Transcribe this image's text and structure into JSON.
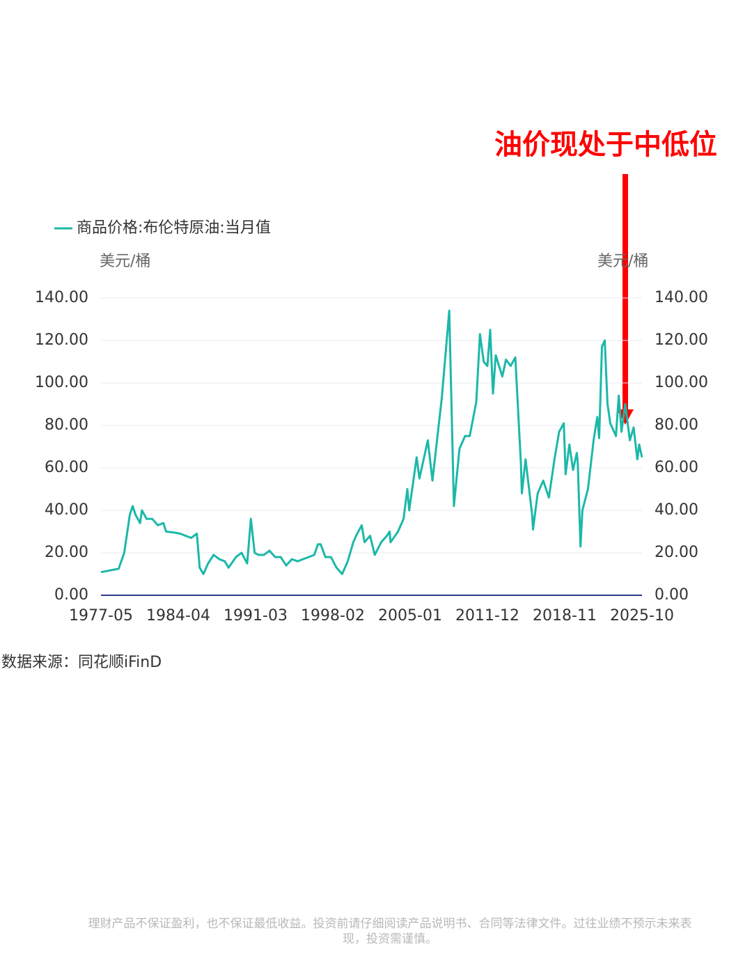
{
  "annotation": "油价现处于中低位",
  "source": "数据来源：同花顺iFinD",
  "disclaimer": "理财产品不保证盈利，也不保证最低收益。投资前请仔细阅读产品说明书、合同等法律文件。过往业绩不预示未来表现，投资需谨慎。",
  "chart_data": {
    "type": "line",
    "y_label": "美元/桶",
    "y2_label": "美元/桶",
    "xlim": [
      "1977-05",
      "2025-10"
    ],
    "xticks": [
      "1977-05",
      "1984-04",
      "1991-03",
      "1998-02",
      "2005-01",
      "2011-12",
      "2018-11",
      "2025-10"
    ],
    "ylim": [
      0,
      140
    ],
    "y2lim": [
      0,
      140
    ],
    "yticks": [
      {
        "value": 0,
        "label": "0.00"
      },
      {
        "value": 20,
        "label": "20.00"
      },
      {
        "value": 40,
        "label": "40.00"
      },
      {
        "value": 60,
        "label": "60.00"
      },
      {
        "value": 80,
        "label": "80.00"
      },
      {
        "value": 100,
        "label": "100.00"
      },
      {
        "value": 120,
        "label": "120.00"
      },
      {
        "value": 140,
        "label": "140.00"
      }
    ],
    "y2ticks": [
      {
        "value": 0,
        "label": "0.00"
      },
      {
        "value": 20,
        "label": "20.00"
      },
      {
        "value": 40,
        "label": "40.00"
      },
      {
        "value": 60,
        "label": "60.00"
      },
      {
        "value": 80,
        "label": "80.00"
      },
      {
        "value": 100,
        "label": "100.00"
      },
      {
        "value": 120,
        "label": "120.00"
      },
      {
        "value": 140,
        "label": "140.00"
      }
    ],
    "grid": true,
    "x": [
      "1977-05",
      "1978-12",
      "1979-06",
      "1979-12",
      "1980-03",
      "1980-06",
      "1980-11",
      "1981-01",
      "1981-06",
      "1981-12",
      "1982-06",
      "1982-12",
      "1983-03",
      "1983-12",
      "1984-06",
      "1984-12",
      "1985-06",
      "1985-12",
      "1986-03",
      "1986-07",
      "1986-12",
      "1987-06",
      "1987-12",
      "1988-06",
      "1988-10",
      "1989-06",
      "1989-12",
      "1990-06",
      "1990-10",
      "1991-02",
      "1991-06",
      "1991-12",
      "1992-06",
      "1992-12",
      "1993-06",
      "1993-12",
      "1994-06",
      "1994-12",
      "1995-06",
      "1995-12",
      "1996-06",
      "1996-10",
      "1997-01",
      "1997-06",
      "1997-12",
      "1998-06",
      "1998-12",
      "1999-06",
      "1999-12",
      "2000-03",
      "2000-09",
      "2000-12",
      "2001-06",
      "2001-11",
      "2002-06",
      "2002-12",
      "2003-03",
      "2003-04",
      "2003-12",
      "2004-06",
      "2004-10",
      "2004-12",
      "2005-08",
      "2005-11",
      "2006-08",
      "2007-01",
      "2007-11",
      "2008-07",
      "2008-12",
      "2009-06",
      "2009-12",
      "2010-05",
      "2010-12",
      "2011-04",
      "2011-08",
      "2011-12",
      "2012-03",
      "2012-06",
      "2012-09",
      "2013-04",
      "2013-08",
      "2014-01",
      "2014-06",
      "2014-12",
      "2015-01",
      "2015-05",
      "2015-12",
      "2016-01",
      "2016-06",
      "2016-12",
      "2017-06",
      "2017-12",
      "2018-05",
      "2018-10",
      "2018-12",
      "2019-04",
      "2019-08",
      "2019-12",
      "2020-01",
      "2020-04",
      "2020-06",
      "2020-12",
      "2021-06",
      "2021-10",
      "2021-12",
      "2022-03",
      "2022-06",
      "2022-09",
      "2022-12",
      "2023-06",
      "2023-09",
      "2023-12",
      "2024-04",
      "2024-09",
      "2025-01",
      "2025-05",
      "2025-07",
      "2025-10"
    ],
    "series": [
      {
        "name": "商品价格:布伦特原油:当月值",
        "color": "#1bb8a8",
        "values": [
          10.9,
          12.5,
          20,
          38,
          42,
          38,
          34,
          40,
          36,
          36,
          33,
          34,
          30,
          29.5,
          29,
          28,
          27,
          29,
          13,
          10,
          15,
          19,
          17,
          16,
          13,
          18,
          20,
          15,
          36,
          20,
          19,
          19,
          21,
          18,
          18,
          14,
          17,
          16,
          17,
          18,
          19,
          24,
          24,
          18,
          18,
          13,
          10,
          16,
          25,
          28,
          33,
          25,
          28,
          19,
          25,
          28,
          30,
          25,
          30,
          36,
          50,
          40,
          65,
          55,
          73,
          54,
          93,
          134,
          42,
          69,
          75,
          75,
          91,
          123,
          110,
          108,
          125,
          95,
          113,
          103,
          111,
          108,
          112,
          62,
          48,
          64,
          38,
          31,
          48,
          54,
          46,
          64,
          77,
          81,
          57,
          71,
          59,
          67,
          63,
          23,
          40,
          50,
          73,
          84,
          74,
          117,
          120,
          90,
          81,
          75,
          94,
          77,
          90,
          73,
          79,
          64,
          71,
          65
        ]
      }
    ]
  }
}
